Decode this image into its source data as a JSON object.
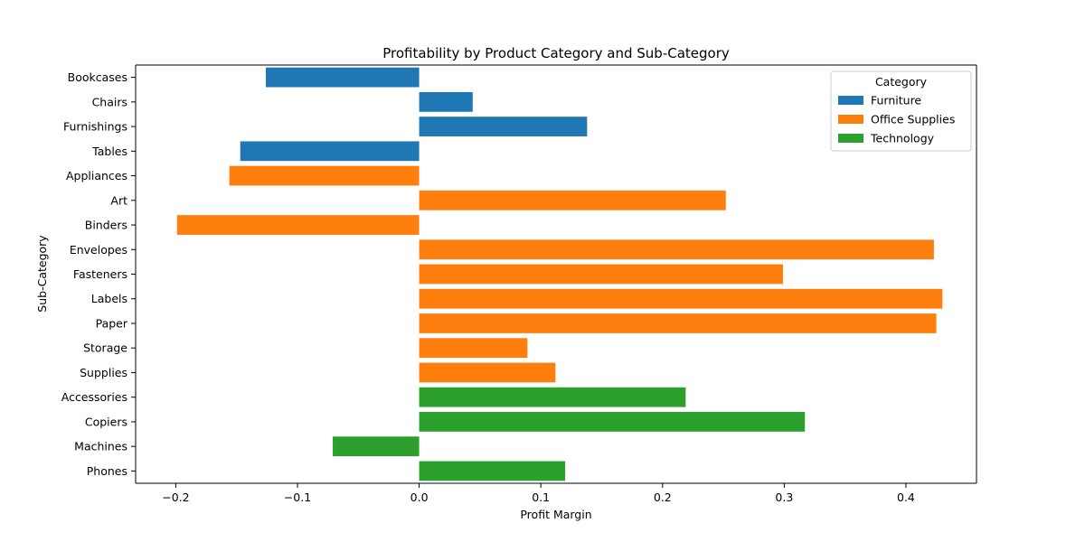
{
  "chart_data": {
    "type": "bar",
    "orientation": "horizontal",
    "title": "Profitability by Product Category and Sub-Category",
    "xlabel": "Profit Margin",
    "ylabel": "Sub-Category",
    "xlim": [
      -0.233,
      0.458
    ],
    "xticks": [
      -0.2,
      -0.1,
      0.0,
      0.1,
      0.2,
      0.3,
      0.4
    ],
    "xtick_labels": [
      "−0.2",
      "−0.1",
      "0.0",
      "0.1",
      "0.2",
      "0.3",
      "0.4"
    ],
    "grid": false,
    "legend_position": "top-right",
    "legend_title": "Category",
    "series": [
      {
        "name": "Furniture",
        "color": "#1f77b4"
      },
      {
        "name": "Office Supplies",
        "color": "#ff7f0e"
      },
      {
        "name": "Technology",
        "color": "#2ca02c"
      }
    ],
    "bars": [
      {
        "label": "Bookcases",
        "category": "Furniture",
        "value": -0.126
      },
      {
        "label": "Chairs",
        "category": "Furniture",
        "value": 0.044
      },
      {
        "label": "Furnishings",
        "category": "Furniture",
        "value": 0.138
      },
      {
        "label": "Tables",
        "category": "Furniture",
        "value": -0.147
      },
      {
        "label": "Appliances",
        "category": "Office Supplies",
        "value": -0.156
      },
      {
        "label": "Art",
        "category": "Office Supplies",
        "value": 0.252
      },
      {
        "label": "Binders",
        "category": "Office Supplies",
        "value": -0.199
      },
      {
        "label": "Envelopes",
        "category": "Office Supplies",
        "value": 0.423
      },
      {
        "label": "Fasteners",
        "category": "Office Supplies",
        "value": 0.299
      },
      {
        "label": "Labels",
        "category": "Office Supplies",
        "value": 0.43
      },
      {
        "label": "Paper",
        "category": "Office Supplies",
        "value": 0.425
      },
      {
        "label": "Storage",
        "category": "Office Supplies",
        "value": 0.089
      },
      {
        "label": "Supplies",
        "category": "Office Supplies",
        "value": 0.112
      },
      {
        "label": "Accessories",
        "category": "Technology",
        "value": 0.219
      },
      {
        "label": "Copiers",
        "category": "Technology",
        "value": 0.317
      },
      {
        "label": "Machines",
        "category": "Technology",
        "value": -0.071
      },
      {
        "label": "Phones",
        "category": "Technology",
        "value": 0.12
      }
    ]
  }
}
